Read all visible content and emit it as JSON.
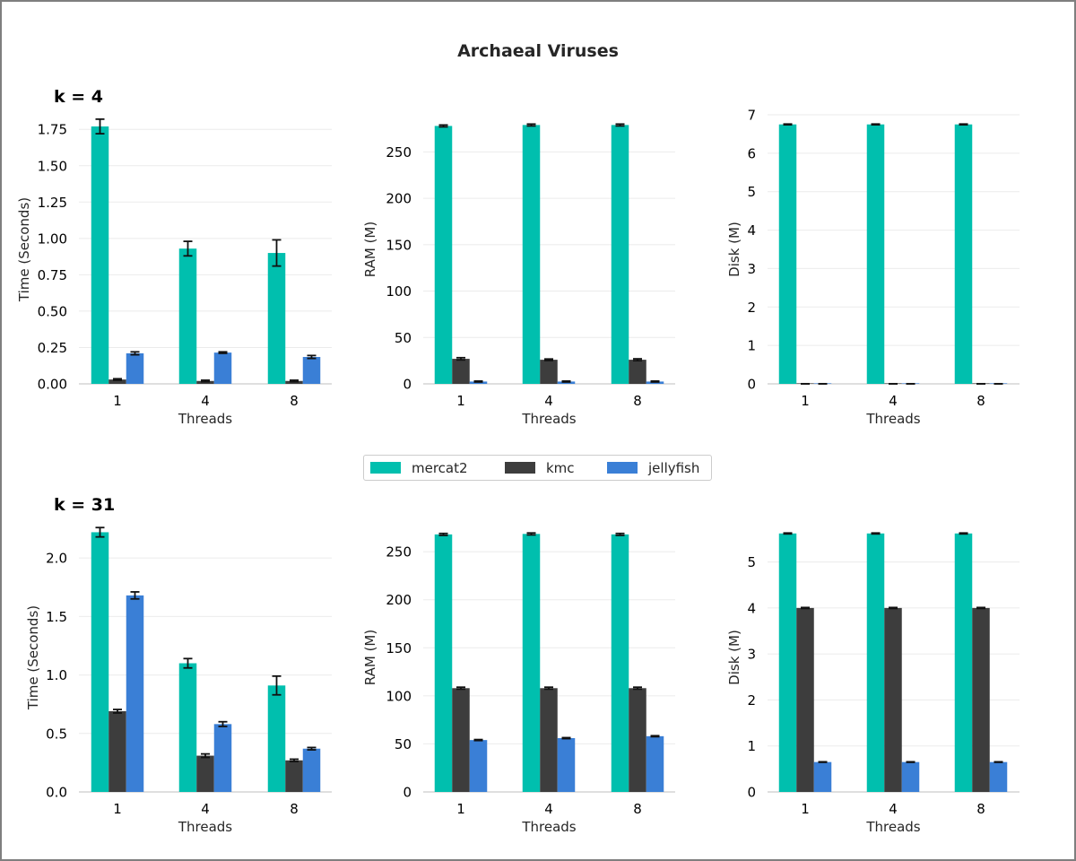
{
  "title": "Archaeal Viruses",
  "colors": {
    "mercat2": "#00bfae",
    "kmc": "#3d3d3d",
    "jellyfish": "#3a7fd6",
    "error_bar": "#111111",
    "grid": "#ebebeb",
    "axis": "#cccccc",
    "text": "#262626"
  },
  "legend": [
    {
      "name": "mercat2",
      "color": "#00bfae"
    },
    {
      "name": "kmc",
      "color": "#3d3d3d"
    },
    {
      "name": "jellyfish",
      "color": "#3a7fd6"
    }
  ],
  "chart_data": [
    {
      "type": "bar",
      "row_label": "k = 4",
      "categories": [
        "1",
        "4",
        "8"
      ],
      "xlabel": "Threads",
      "ylabel": "Time (Seconds)",
      "ylim": [
        0,
        1.85
      ],
      "yticks": [
        0.0,
        0.25,
        0.5,
        0.75,
        1.0,
        1.25,
        1.5,
        1.75
      ],
      "ytick_labels": [
        "0.00",
        "0.25",
        "0.50",
        "0.75",
        "1.00",
        "1.25",
        "1.50",
        "1.75"
      ],
      "series": [
        {
          "name": "mercat2",
          "values": [
            1.77,
            0.93,
            0.9
          ],
          "errors": [
            0.05,
            0.05,
            0.09
          ]
        },
        {
          "name": "kmc",
          "values": [
            0.03,
            0.02,
            0.02
          ],
          "errors": [
            0.005,
            0.005,
            0.005
          ]
        },
        {
          "name": "jellyfish",
          "values": [
            0.21,
            0.215,
            0.185
          ],
          "errors": [
            0.01,
            0.005,
            0.01
          ]
        }
      ]
    },
    {
      "type": "bar",
      "row_label": "",
      "categories": [
        "1",
        "4",
        "8"
      ],
      "xlabel": "Threads",
      "ylabel": "RAM (M)",
      "ylim": [
        0,
        290
      ],
      "yticks": [
        0,
        50,
        100,
        150,
        200,
        250
      ],
      "ytick_labels": [
        "0",
        "50",
        "100",
        "150",
        "200",
        "250"
      ],
      "series": [
        {
          "name": "mercat2",
          "values": [
            278,
            279,
            279
          ],
          "errors": [
            1,
            1,
            1
          ]
        },
        {
          "name": "kmc",
          "values": [
            27,
            26,
            26
          ],
          "errors": [
            1.2,
            0.8,
            1
          ]
        },
        {
          "name": "jellyfish",
          "values": [
            2.5,
            2.5,
            2.5
          ],
          "errors": [
            0.5,
            0.5,
            0.5
          ]
        }
      ]
    },
    {
      "type": "bar",
      "row_label": "",
      "categories": [
        "1",
        "4",
        "8"
      ],
      "xlabel": "Threads",
      "ylabel": "Disk (M)",
      "ylim": [
        0,
        7.0
      ],
      "yticks": [
        0,
        1,
        2,
        3,
        4,
        5,
        6,
        7
      ],
      "ytick_labels": [
        "0",
        "1",
        "2",
        "3",
        "4",
        "5",
        "6",
        "7"
      ],
      "series": [
        {
          "name": "mercat2",
          "values": [
            6.75,
            6.75,
            6.75
          ],
          "errors": [
            0.01,
            0.01,
            0.01
          ]
        },
        {
          "name": "kmc",
          "values": [
            0.002,
            0.002,
            0.002
          ],
          "errors": [
            0.001,
            0.001,
            0.001
          ]
        },
        {
          "name": "jellyfish",
          "values": [
            0.002,
            0.002,
            0.002
          ],
          "errors": [
            0.001,
            0.001,
            0.001
          ]
        }
      ]
    },
    {
      "type": "bar",
      "row_label": "k = 31",
      "categories": [
        "1",
        "4",
        "8"
      ],
      "xlabel": "Threads",
      "ylabel": "Time (Seconds)",
      "ylim": [
        0,
        2.3
      ],
      "yticks": [
        0.0,
        0.5,
        1.0,
        1.5,
        2.0
      ],
      "ytick_labels": [
        "0.0",
        "0.5",
        "1.0",
        "1.5",
        "2.0"
      ],
      "series": [
        {
          "name": "mercat2",
          "values": [
            2.22,
            1.1,
            0.91
          ],
          "errors": [
            0.04,
            0.04,
            0.08
          ]
        },
        {
          "name": "kmc",
          "values": [
            0.69,
            0.31,
            0.27
          ],
          "errors": [
            0.015,
            0.015,
            0.01
          ]
        },
        {
          "name": "jellyfish",
          "values": [
            1.68,
            0.58,
            0.37
          ],
          "errors": [
            0.03,
            0.02,
            0.01
          ]
        }
      ]
    },
    {
      "type": "bar",
      "row_label": "",
      "categories": [
        "1",
        "4",
        "8"
      ],
      "xlabel": "Threads",
      "ylabel": "RAM (M)",
      "ylim": [
        0,
        280
      ],
      "yticks": [
        0,
        50,
        100,
        150,
        200,
        250
      ],
      "ytick_labels": [
        "0",
        "50",
        "100",
        "150",
        "200",
        "250"
      ],
      "series": [
        {
          "name": "mercat2",
          "values": [
            268,
            268.5,
            268
          ],
          "errors": [
            1,
            1,
            1
          ]
        },
        {
          "name": "kmc",
          "values": [
            108,
            108,
            108
          ],
          "errors": [
            1,
            1,
            1
          ]
        },
        {
          "name": "jellyfish",
          "values": [
            54,
            56,
            58
          ],
          "errors": [
            0.5,
            0.5,
            0.5
          ]
        }
      ]
    },
    {
      "type": "bar",
      "row_label": "",
      "categories": [
        "1",
        "4",
        "8"
      ],
      "xlabel": "Threads",
      "ylabel": "Disk (M)",
      "ylim": [
        0,
        5.85
      ],
      "yticks": [
        0,
        1,
        2,
        3,
        4,
        5
      ],
      "ytick_labels": [
        "0",
        "1",
        "2",
        "3",
        "4",
        "5"
      ],
      "series": [
        {
          "name": "mercat2",
          "values": [
            5.62,
            5.62,
            5.62
          ],
          "errors": [
            0.01,
            0.01,
            0.01
          ]
        },
        {
          "name": "kmc",
          "values": [
            4.0,
            4.0,
            4.0
          ],
          "errors": [
            0.01,
            0.01,
            0.01
          ]
        },
        {
          "name": "jellyfish",
          "values": [
            0.65,
            0.65,
            0.65
          ],
          "errors": [
            0.005,
            0.005,
            0.005
          ]
        }
      ]
    }
  ]
}
